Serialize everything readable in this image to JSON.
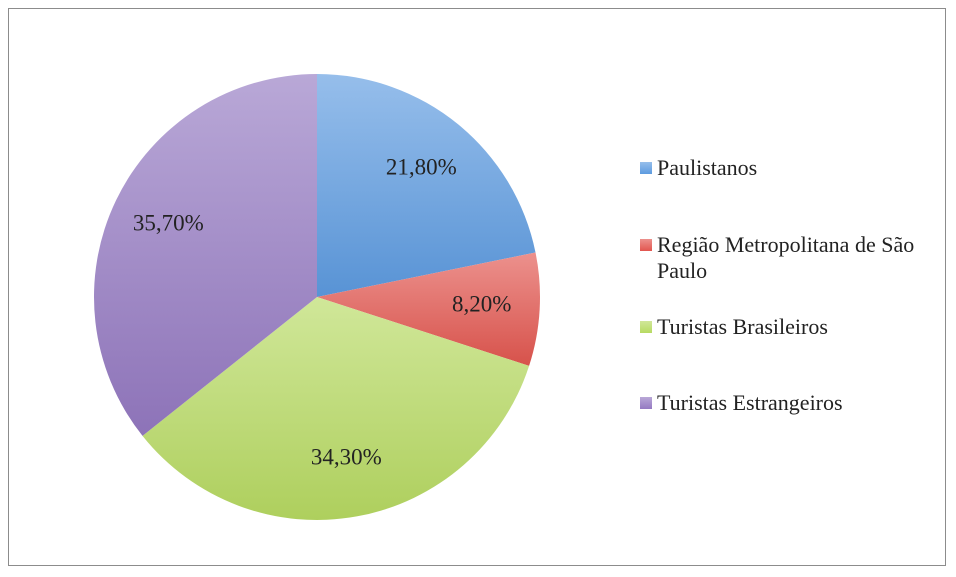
{
  "chart_data": {
    "type": "pie",
    "categories": [
      "Paulistanos",
      "Região Metropolitana de São Paulo",
      "Turistas Brasileiros",
      "Turistas Estrangeiros"
    ],
    "values": [
      21.8,
      8.2,
      34.3,
      35.7
    ],
    "value_labels": [
      "21,80%",
      "8,20%",
      "34,30%",
      "35,70%"
    ],
    "colors": [
      "#5d9be0",
      "#e2564f",
      "#b7da62",
      "#9479c2"
    ],
    "legend": "right"
  }
}
